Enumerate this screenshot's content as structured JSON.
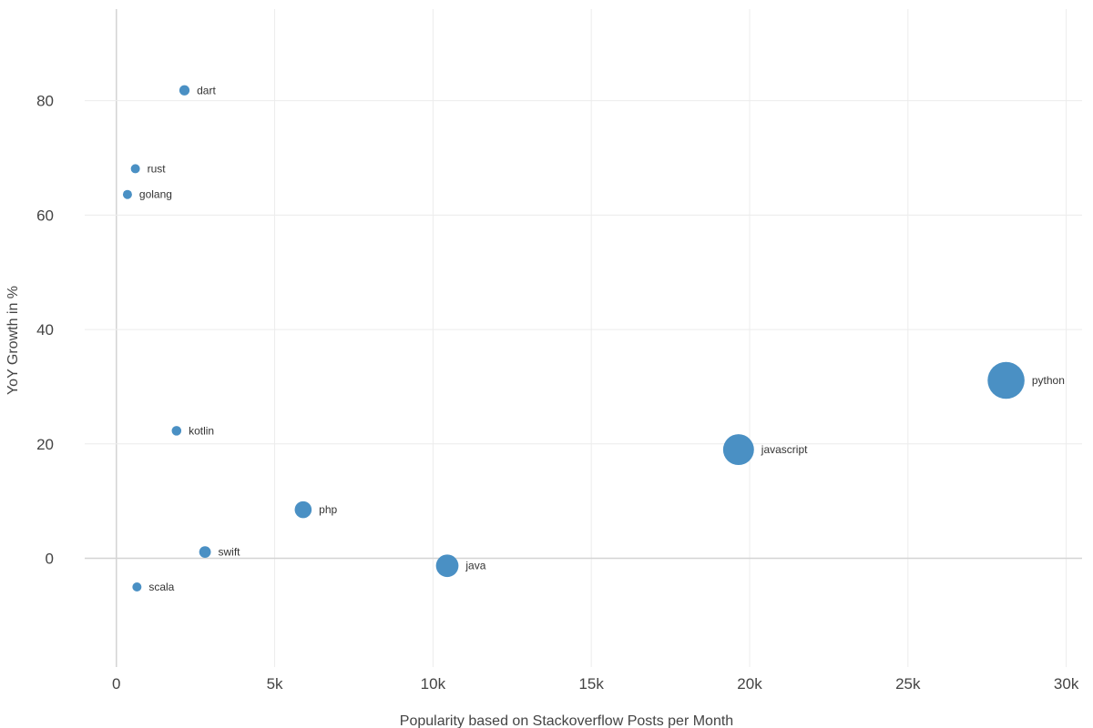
{
  "chart_data": {
    "type": "scatter",
    "title": "",
    "xlabel": "Popularity based on Stackoverflow Posts per Month",
    "ylabel": "YoY Growth in %",
    "xlim": [
      -1000,
      30500
    ],
    "ylim": [
      -19,
      96
    ],
    "x_ticks": [
      0,
      5000,
      10000,
      15000,
      20000,
      25000,
      30000
    ],
    "x_tick_labels": [
      "0",
      "5k",
      "10k",
      "15k",
      "20k",
      "25k",
      "30k"
    ],
    "y_ticks": [
      0,
      20,
      40,
      60,
      80
    ],
    "y_tick_labels": [
      "0",
      "20",
      "40",
      "60",
      "80"
    ],
    "grid": true,
    "legend": "none",
    "marker_color": "#4a90c4",
    "size_variable": "posts per month",
    "points": [
      {
        "label": "dart",
        "x": 2150,
        "y": 81.8
      },
      {
        "label": "rust",
        "x": 600,
        "y": 68.1
      },
      {
        "label": "golang",
        "x": 350,
        "y": 63.6
      },
      {
        "label": "kotlin",
        "x": 1900,
        "y": 22.3
      },
      {
        "label": "php",
        "x": 5900,
        "y": 8.5
      },
      {
        "label": "swift",
        "x": 2800,
        "y": 1.1
      },
      {
        "label": "scala",
        "x": 650,
        "y": -5.0
      },
      {
        "label": "java",
        "x": 10450,
        "y": -1.3
      },
      {
        "label": "javascript",
        "x": 19650,
        "y": 19.0
      },
      {
        "label": "python",
        "x": 28100,
        "y": 31.1
      }
    ]
  }
}
